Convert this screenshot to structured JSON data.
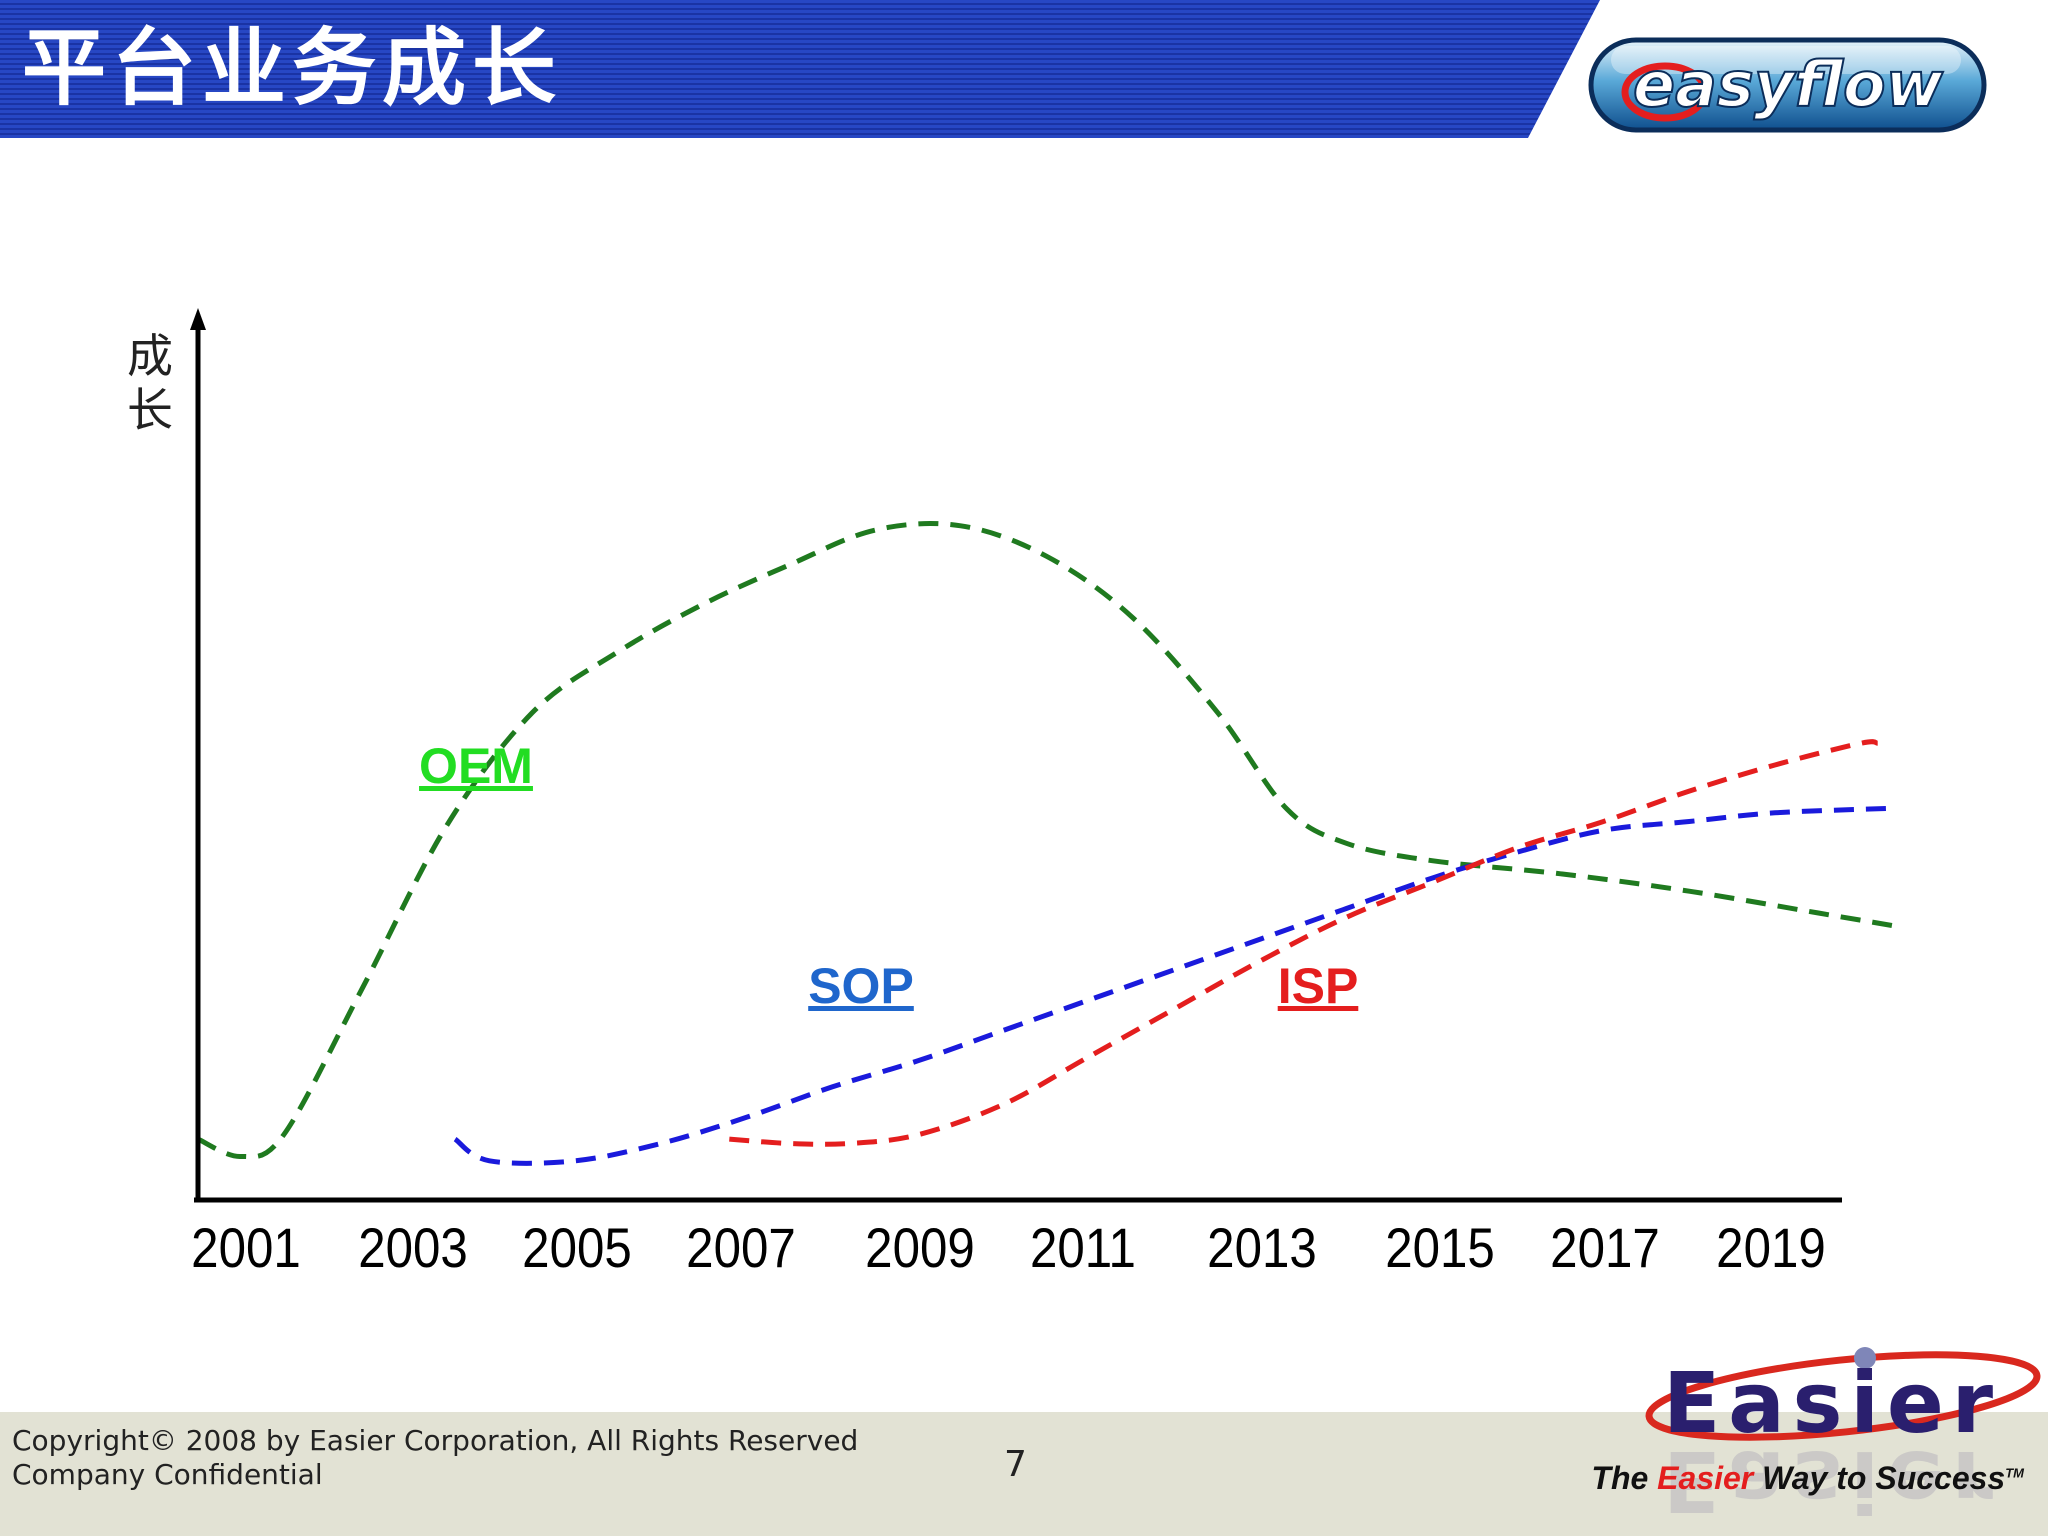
{
  "slide": {
    "title": "平台业务成长",
    "logo_text": "easyflow"
  },
  "footer": {
    "copyright_line1": "Copyright© 2008 by Easier Corporation, All Rights Reserved",
    "copyright_line2": "Company Confidential",
    "page_number": "7",
    "corp_logo_text": "Easier",
    "tagline_pre": "The ",
    "tagline_highlight": "Easier",
    "tagline_post": " Way to Success",
    "tagline_tm": "TM"
  },
  "colors": {
    "header_blue": "#1f3db5",
    "oem": "#1f7a1f",
    "oem_label": "#22dd22",
    "sop": "#1a1adc",
    "sop_label": "#1f66cc",
    "isp": "#e41e1e",
    "axis": "#000000"
  },
  "chart_data": {
    "type": "line",
    "title": "",
    "xlabel": "",
    "ylabel": "成长",
    "x_ticks": [
      "2001",
      "2003",
      "2005",
      "2007",
      "2009",
      "2011",
      "2013",
      "2015",
      "2017",
      "2019"
    ],
    "xlim": [
      2000.6,
      2020.6
    ],
    "ylim": [
      0,
      100
    ],
    "grid": false,
    "legend": "inline labels",
    "series": [
      {
        "name": "OEM",
        "color": "#1f7a1f",
        "x": [
          2000.6,
          2001.1,
          2001.6,
          2002.5,
          2003.5,
          2004.5,
          2005.5,
          2006.5,
          2007.5,
          2008.5,
          2009.5,
          2010.5,
          2011.5,
          2012.5,
          2013.3,
          2014.0,
          2015.0,
          2016.5,
          2018.0,
          2019.5,
          2020.4
        ],
        "y": [
          7.0,
          5.0,
          7.5,
          24.0,
          43.0,
          56.0,
          63.0,
          68.5,
          73.0,
          77.0,
          77.5,
          74.0,
          67.0,
          56.0,
          45.0,
          41.0,
          39.0,
          37.5,
          35.5,
          33.0,
          31.5
        ]
      },
      {
        "name": "SOP",
        "color": "#1a1adc",
        "x": [
          2003.6,
          2004.0,
          2005.0,
          2006.0,
          2007.0,
          2008.0,
          2009.0,
          2010.0,
          2011.0,
          2012.0,
          2013.0,
          2014.0,
          2015.0,
          2016.0,
          2017.0,
          2018.0,
          2019.0,
          2020.3
        ],
        "y": [
          7.0,
          4.5,
          4.5,
          6.5,
          9.5,
          13.0,
          16.0,
          19.5,
          23.0,
          26.5,
          30.0,
          33.5,
          37.0,
          40.0,
          42.5,
          43.5,
          44.5,
          45.0
        ]
      },
      {
        "name": "ISP",
        "color": "#e41e1e",
        "x": [
          2006.8,
          2007.5,
          2008.2,
          2009.0,
          2010.0,
          2011.0,
          2012.0,
          2013.0,
          2014.0,
          2015.0,
          2016.0,
          2017.0,
          2018.0,
          2019.0,
          2020.0,
          2020.2
        ],
        "y": [
          7.0,
          6.5,
          6.5,
          7.5,
          11.0,
          16.5,
          22.0,
          27.5,
          32.5,
          36.5,
          40.5,
          43.5,
          47.0,
          50.0,
          52.5,
          52.5
        ]
      }
    ],
    "annotations": [
      {
        "text": "OEM",
        "series": "OEM"
      },
      {
        "text": "SOP",
        "series": "SOP"
      },
      {
        "text": "ISP",
        "series": "ISP"
      }
    ]
  }
}
